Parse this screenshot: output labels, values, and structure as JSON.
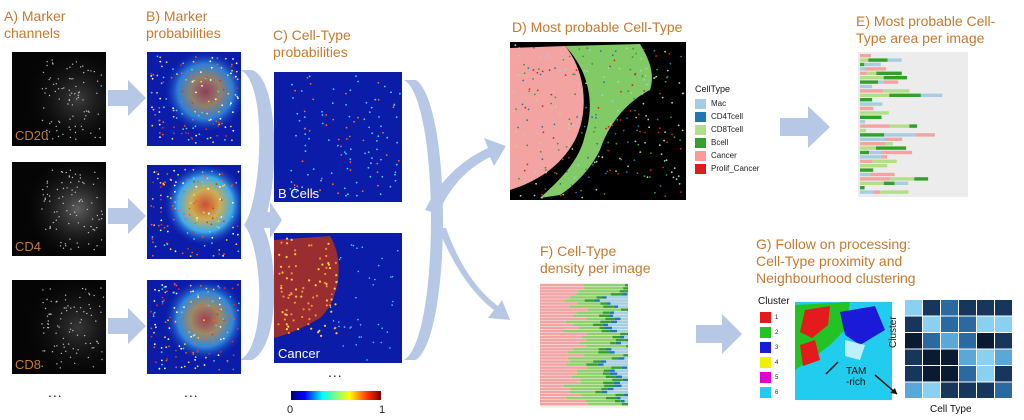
{
  "panels": {
    "a": {
      "title_line1": "A) Marker",
      "title_line2": "channels",
      "markers": [
        "CD20",
        "CD4",
        "CD8"
      ],
      "more": "..."
    },
    "b": {
      "title_line1": "B) Marker",
      "title_line2": "probabilities",
      "more": "..."
    },
    "c": {
      "title_line1": "C) Cell-Type",
      "title_line2": "probabilities",
      "maps": [
        "B Cells",
        "Cancer"
      ],
      "more": "...",
      "colorbar_min": "0",
      "colorbar_max": "1"
    },
    "d": {
      "title": "D) Most probable Cell-Type",
      "legend_title": "CellType",
      "legend": [
        {
          "label": "Mac",
          "color": "#a6cee3"
        },
        {
          "label": "CD4Tcell",
          "color": "#1f78b4"
        },
        {
          "label": "CD8Tcell",
          "color": "#b2df8a"
        },
        {
          "label": "Bcell",
          "color": "#33a02c"
        },
        {
          "label": "Cancer",
          "color": "#fb9a99"
        },
        {
          "label": "Prolif_Cancer",
          "color": "#e31a1c"
        }
      ]
    },
    "e": {
      "title_line1": "E) Most probable Cell-",
      "title_line2": "Type area per image"
    },
    "f": {
      "title_line1": "F) Cell-Type",
      "title_line2": "density per image"
    },
    "g": {
      "title_line1": "G) Follow on processing:",
      "title_line2": "Cell-Type proximity and",
      "title_line3": "Neighbourhood clustering",
      "cluster_title": "Cluster",
      "clusters": [
        {
          "label": "1",
          "color": "#e41a1c"
        },
        {
          "label": "2",
          "color": "#22c322"
        },
        {
          "label": "3",
          "color": "#1a1ad8"
        },
        {
          "label": "4",
          "color": "#f0f000"
        },
        {
          "label": "5",
          "color": "#e000d0"
        },
        {
          "label": "6",
          "color": "#22ccee"
        }
      ],
      "annotation_line1": "TAM",
      "annotation_line2": "-rich",
      "heatmap_ylabel": "Cluster",
      "heatmap_xlabel": "Cell Type"
    }
  },
  "colors": {
    "label": "#c57a2f",
    "arrow": "#b7c8e6",
    "jet_low": "#0a1ca8",
    "bg": "#ffffff"
  }
}
